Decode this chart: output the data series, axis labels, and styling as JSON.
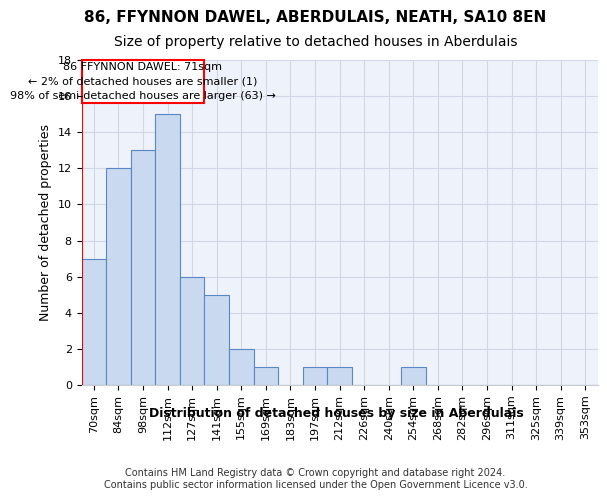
{
  "title": "86, FFYNNON DAWEL, ABERDULAIS, NEATH, SA10 8EN",
  "subtitle": "Size of property relative to detached houses in Aberdulais",
  "xlabel": "Distribution of detached houses by size in Aberdulais",
  "ylabel": "Number of detached properties",
  "bar_values": [
    7,
    12,
    13,
    15,
    6,
    5,
    2,
    1,
    0,
    1,
    1,
    0,
    0,
    1,
    0,
    0,
    0,
    0,
    0,
    0,
    0
  ],
  "bar_labels": [
    "70sqm",
    "84sqm",
    "98sqm",
    "112sqm",
    "127sqm",
    "141sqm",
    "155sqm",
    "169sqm",
    "183sqm",
    "197sqm",
    "212sqm",
    "226sqm",
    "240sqm",
    "254sqm",
    "268sqm",
    "282sqm",
    "296sqm",
    "311sqm",
    "325sqm",
    "339sqm",
    "353sqm"
  ],
  "bar_color": "#c9d9f0",
  "bar_edge_color": "#5a87c5",
  "ylim": [
    0,
    18
  ],
  "yticks": [
    0,
    2,
    4,
    6,
    8,
    10,
    12,
    14,
    16,
    18
  ],
  "annotation_box_text": "86 FFYNNON DAWEL: 71sqm\n← 2% of detached houses are smaller (1)\n98% of semi-detached houses are larger (63) →",
  "annotation_box_color": "#ff0000",
  "grid_color": "#d0d8e8",
  "background_color": "#eef2fa",
  "footnote": "Contains HM Land Registry data © Crown copyright and database right 2024.\nContains public sector information licensed under the Open Government Licence v3.0.",
  "title_fontsize": 11,
  "subtitle_fontsize": 10,
  "xlabel_fontsize": 9,
  "ylabel_fontsize": 9,
  "tick_fontsize": 8,
  "annot_fontsize": 8,
  "footnote_fontsize": 7
}
